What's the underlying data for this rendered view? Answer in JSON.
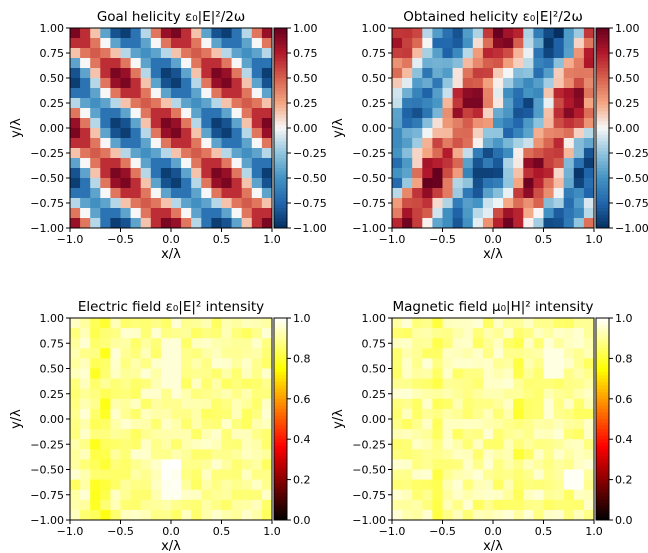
{
  "chart_data": [
    {
      "type": "heatmap",
      "title": "Goal helicity ε₀|E|²/2ω",
      "xlabel": "x/λ",
      "ylabel": "y/λ",
      "xlim": [
        -1.0,
        1.0
      ],
      "ylim": [
        -1.0,
        1.0
      ],
      "x_ticks": [
        "−1.0",
        "−0.5",
        "0.0",
        "0.5",
        "1.0"
      ],
      "y_ticks": [
        "1.00",
        "0.75",
        "0.50",
        "0.25",
        "0.00",
        "−0.25",
        "−0.50",
        "−0.75",
        "−1.00"
      ],
      "colormap": "RdBu_r",
      "colorbar_range": [
        -1.0,
        1.0
      ],
      "colorbar_ticks": [
        "1.00",
        "0.75",
        "0.50",
        "0.25",
        "0.00",
        "−0.25",
        "−0.50",
        "−0.75",
        "−1.00"
      ],
      "grid_size": [
        20,
        20
      ],
      "pattern": "periodic checkerboard, period 1λ; blue peaks (≈ −1.0) near (x,y)=(−0.65,0.65),(0.35,0.65),(−0.65,−0.35),(0.35,−0.35); red peaks (≈ +1.0) near (−0.35,0.35),(0.65,0.35),(−0.35,−0.65),(0.65,−0.65)"
    },
    {
      "type": "heatmap",
      "title": "Obtained helicity ε₀|E|²/2ω",
      "xlabel": "x/λ",
      "ylabel": "y/λ",
      "xlim": [
        -1.0,
        1.0
      ],
      "ylim": [
        -1.0,
        1.0
      ],
      "x_ticks": [
        "−1.0",
        "−0.5",
        "0.0",
        "0.5",
        "1.0"
      ],
      "y_ticks": [
        "1.00",
        "0.75",
        "0.50",
        "0.25",
        "0.00",
        "−0.25",
        "−0.50",
        "−0.75",
        "−1.00"
      ],
      "colormap": "RdBu_r",
      "colorbar_range": [
        -1.0,
        1.0
      ],
      "colorbar_ticks": [
        "1.00",
        "0.75",
        "0.50",
        "0.25",
        "0.00",
        "−0.25",
        "−0.50",
        "−0.75",
        "−1.00"
      ],
      "grid_size": [
        20,
        20
      ],
      "pattern": "same periodic pattern as goal with noisy diagonal stripes"
    },
    {
      "type": "heatmap",
      "title": "Electric field ε₀|E|² intensity",
      "xlabel": "x/λ",
      "ylabel": "y/λ",
      "xlim": [
        -1.0,
        1.0
      ],
      "ylim": [
        -1.0,
        1.0
      ],
      "x_ticks": [
        "−1.0",
        "−0.5",
        "0.0",
        "0.5",
        "1.0"
      ],
      "y_ticks": [
        "1.00",
        "0.75",
        "0.50",
        "0.25",
        "0.00",
        "−0.25",
        "−0.50",
        "−0.75",
        "−1.00"
      ],
      "colormap": "hot",
      "colorbar_range": [
        0.0,
        1.0
      ],
      "colorbar_ticks": [
        "1.0",
        "0.8",
        "0.6",
        "0.4",
        "0.2",
        "0.0"
      ],
      "grid_size": [
        20,
        20
      ],
      "pattern": "nearly uniform ≈0.85–1.0; slightly darker column near x=−0.8; brighter spots near x=0 and y=−0.6"
    },
    {
      "type": "heatmap",
      "title": "Magnetic field μ₀|H|² intensity",
      "xlabel": "x/λ",
      "ylabel": "y/λ",
      "xlim": [
        -1.0,
        1.0
      ],
      "ylim": [
        -1.0,
        1.0
      ],
      "x_ticks": [
        "−1.0",
        "−0.5",
        "0.0",
        "0.5",
        "1.0"
      ],
      "y_ticks": [
        "1.00",
        "0.75",
        "0.50",
        "0.25",
        "0.00",
        "−0.25",
        "−0.50",
        "−0.75",
        "−1.00"
      ],
      "colormap": "hot",
      "colorbar_range": [
        0.0,
        1.0
      ],
      "colorbar_ticks": [
        "1.0",
        "0.8",
        "0.6",
        "0.4",
        "0.2",
        "0.0"
      ],
      "grid_size": [
        20,
        20
      ],
      "pattern": "nearly uniform ≈0.85–1.0 with faint darker vertical stripes and bright spot near (0.75,−0.55)"
    }
  ]
}
